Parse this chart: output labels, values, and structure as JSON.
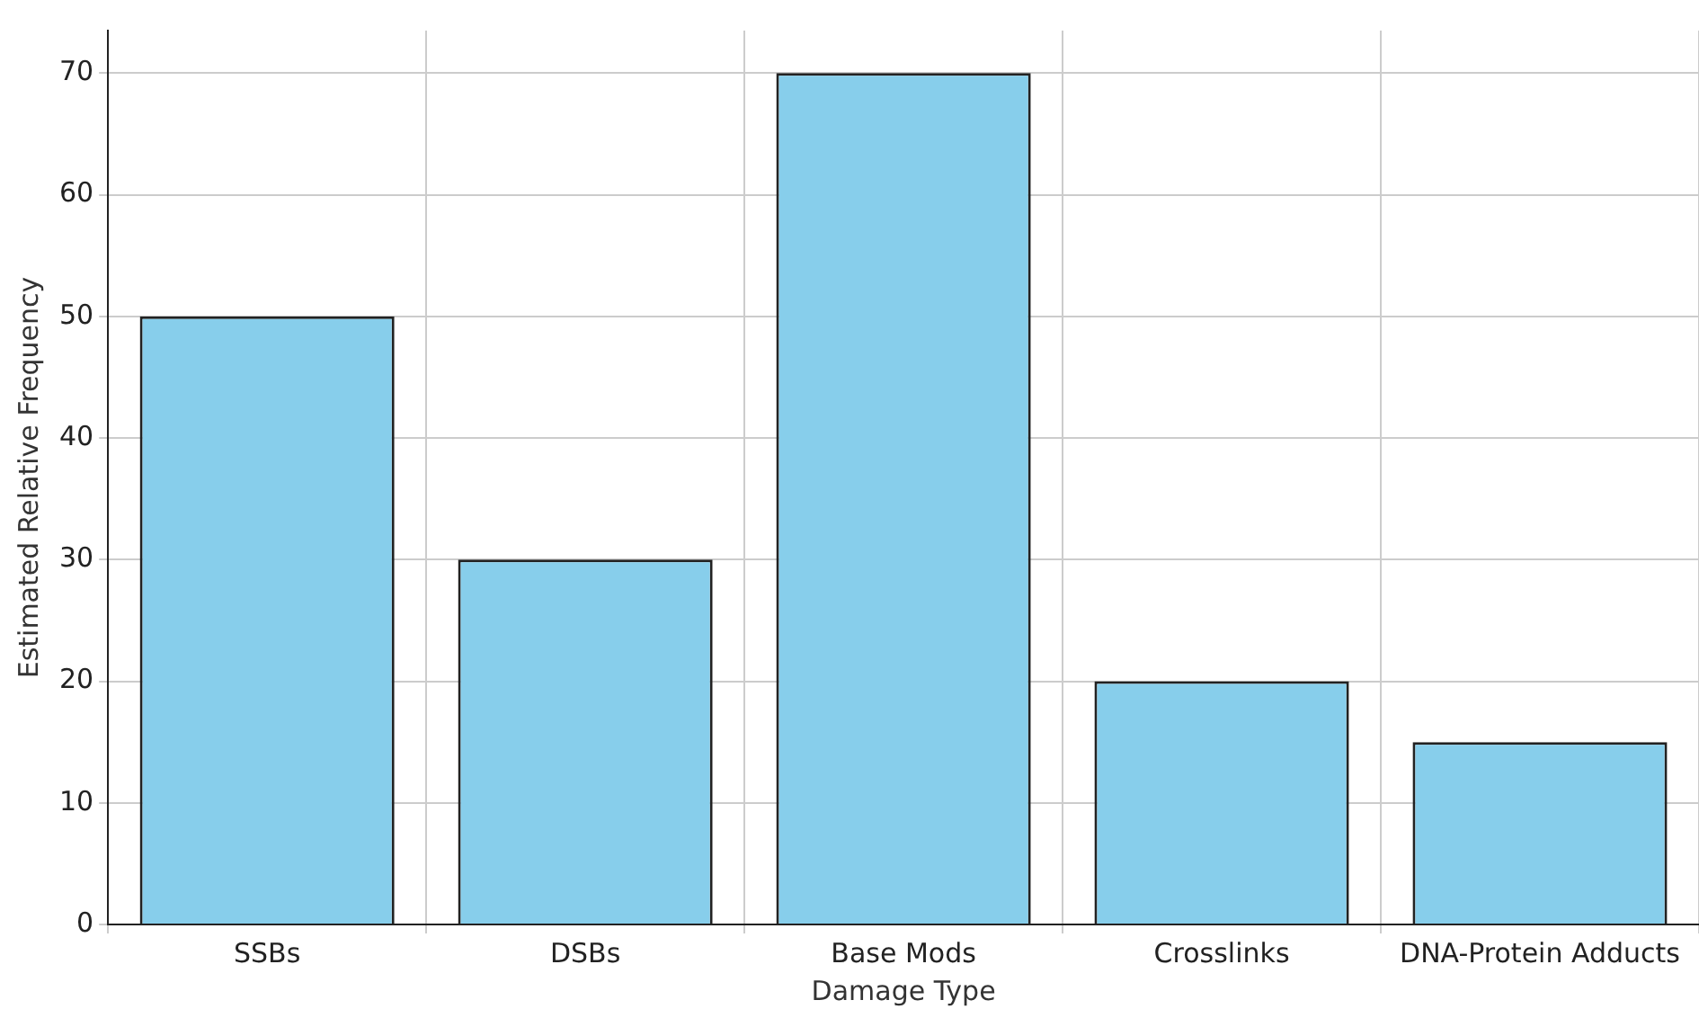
{
  "chart_data": {
    "type": "bar",
    "xlabel": "Damage Type",
    "ylabel": "Estimated Relative Frequency",
    "categories": [
      "SSBs",
      "DSBs",
      "Base Mods",
      "Crosslinks",
      "DNA-Protein Adducts"
    ],
    "values": [
      50,
      30,
      70,
      20,
      15
    ],
    "color": "#87ceeb",
    "ylim": [
      0,
      73.5
    ],
    "yticks": [
      0,
      10,
      20,
      30,
      40,
      50,
      60,
      70
    ],
    "grid": true
  }
}
